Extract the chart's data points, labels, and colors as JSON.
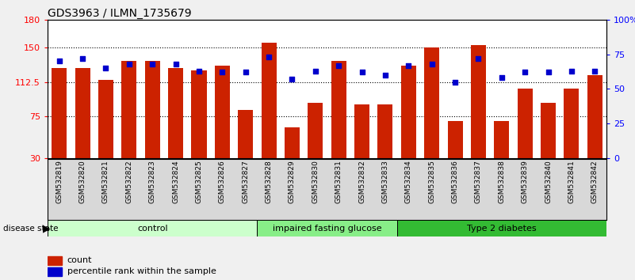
{
  "title": "GDS3963 / ILMN_1735679",
  "samples": [
    "GSM532819",
    "GSM532820",
    "GSM532821",
    "GSM532822",
    "GSM532823",
    "GSM532824",
    "GSM532825",
    "GSM532826",
    "GSM532827",
    "GSM532828",
    "GSM532829",
    "GSM532830",
    "GSM532831",
    "GSM532832",
    "GSM532833",
    "GSM532834",
    "GSM532835",
    "GSM532836",
    "GSM532837",
    "GSM532838",
    "GSM532839",
    "GSM532840",
    "GSM532841",
    "GSM532842"
  ],
  "bar_values": [
    128,
    128,
    115,
    135,
    135,
    128,
    125,
    130,
    82,
    155,
    63,
    90,
    135,
    88,
    88,
    130,
    150,
    70,
    152,
    70,
    105,
    90,
    105,
    120
  ],
  "dot_values": [
    70,
    72,
    65,
    68,
    68,
    68,
    63,
    62,
    62,
    73,
    57,
    63,
    67,
    62,
    60,
    67,
    68,
    55,
    72,
    58,
    62,
    62,
    63,
    63
  ],
  "groups": [
    {
      "label": "control",
      "start": 0,
      "end": 8,
      "color": "#ccffcc"
    },
    {
      "label": "impaired fasting glucose",
      "start": 9,
      "end": 14,
      "color": "#88ee88"
    },
    {
      "label": "Type 2 diabetes",
      "start": 15,
      "end": 23,
      "color": "#33bb33"
    }
  ],
  "bar_color": "#cc2200",
  "dot_color": "#0000cc",
  "ylim_left": [
    30,
    180
  ],
  "ylim_right": [
    0,
    100
  ],
  "yticks_left": [
    30,
    75,
    112.5,
    150,
    180
  ],
  "ytick_labels_left": [
    "30",
    "75",
    "112.5",
    "150",
    "180"
  ],
  "yticks_right": [
    0,
    25,
    50,
    75,
    100
  ],
  "ytick_labels_right": [
    "0",
    "25",
    "50",
    "75",
    "100%"
  ],
  "grid_lines": [
    75,
    112.5,
    150
  ],
  "title_fontsize": 10,
  "bar_width": 0.65,
  "background_color": "#f0f0f0",
  "plot_bg_color": "#ffffff",
  "xtick_bg_color": "#d8d8d8",
  "legend_items": [
    "count",
    "percentile rank within the sample"
  ]
}
